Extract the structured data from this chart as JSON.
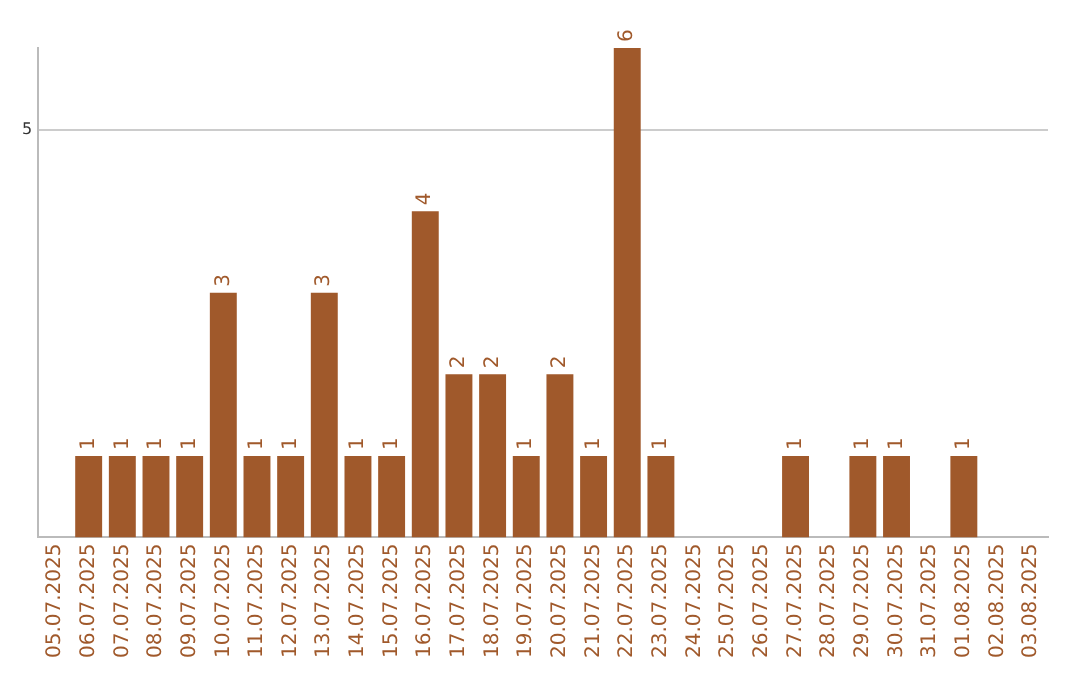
{
  "chart_data": {
    "type": "bar",
    "categories": [
      "05.07.2025",
      "06.07.2025",
      "07.07.2025",
      "08.07.2025",
      "09.07.2025",
      "10.07.2025",
      "11.07.2025",
      "12.07.2025",
      "13.07.2025",
      "14.07.2025",
      "15.07.2025",
      "16.07.2025",
      "17.07.2025",
      "18.07.2025",
      "19.07.2025",
      "20.07.2025",
      "21.07.2025",
      "22.07.2025",
      "23.07.2025",
      "24.07.2025",
      "25.07.2025",
      "26.07.2025",
      "27.07.2025",
      "28.07.2025",
      "29.07.2025",
      "30.07.2025",
      "31.07.2025",
      "01.08.2025",
      "02.08.2025",
      "03.08.2025"
    ],
    "values": [
      0,
      1,
      1,
      1,
      1,
      3,
      1,
      1,
      3,
      1,
      1,
      4,
      2,
      2,
      1,
      2,
      1,
      6,
      1,
      0,
      0,
      0,
      1,
      0,
      1,
      1,
      0,
      1,
      0,
      0
    ],
    "value_labels": [
      null,
      "1",
      "1",
      "1",
      "1",
      "3",
      "1",
      "1",
      "3",
      "1",
      "1",
      "4",
      "2",
      "2",
      "1",
      "2",
      "1",
      "6",
      "1",
      null,
      null,
      null,
      "1",
      null,
      "1",
      "1",
      null,
      "1",
      null,
      null
    ],
    "color": "#a0592b",
    "ylim": [
      0,
      6
    ],
    "yticks": [
      5
    ],
    "grid": "y",
    "legend": false
  }
}
